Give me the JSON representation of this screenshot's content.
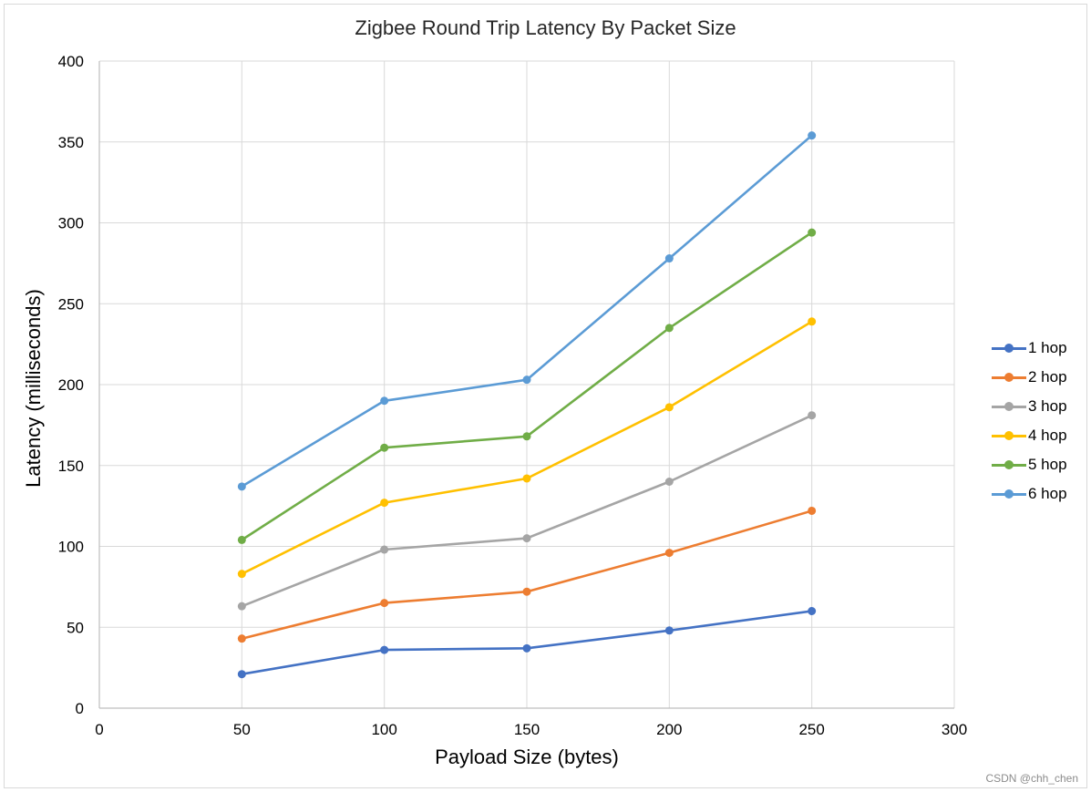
{
  "chart": {
    "title": "Zigbee Round Trip Latency By Packet Size",
    "xlabel": "Payload Size (bytes)",
    "ylabel": "Latency (milliseconds)",
    "x_ticks": [
      "0",
      "50",
      "100",
      "150",
      "200",
      "250",
      "300"
    ],
    "y_ticks": [
      "0",
      "50",
      "100",
      "150",
      "200",
      "250",
      "300",
      "350",
      "400"
    ],
    "watermark": "CSDN @chh_chen"
  },
  "legend": [
    {
      "label": "1 hop",
      "color": "#4472c4"
    },
    {
      "label": "2 hop",
      "color": "#ed7d31"
    },
    {
      "label": "3 hop",
      "color": "#a5a5a5"
    },
    {
      "label": "4 hop",
      "color": "#ffc000"
    },
    {
      "label": "5 hop",
      "color": "#70ad47"
    },
    {
      "label": "6 hop",
      "color": "#5b9bd5"
    }
  ],
  "chart_data": {
    "type": "line",
    "title": "Zigbee Round Trip Latency By Packet Size",
    "xlabel": "Payload Size (bytes)",
    "ylabel": "Latency (milliseconds)",
    "x": [
      50,
      100,
      150,
      200,
      250
    ],
    "xlim": [
      0,
      300
    ],
    "ylim": [
      0,
      400
    ],
    "x_tick_step": 50,
    "y_tick_step": 50,
    "grid": true,
    "legend_position": "right",
    "series": [
      {
        "name": "1 hop",
        "color": "#4472c4",
        "values": [
          21,
          36,
          37,
          48,
          60
        ]
      },
      {
        "name": "2 hop",
        "color": "#ed7d31",
        "values": [
          43,
          65,
          72,
          96,
          122
        ]
      },
      {
        "name": "3 hop",
        "color": "#a5a5a5",
        "values": [
          63,
          98,
          105,
          140,
          181
        ]
      },
      {
        "name": "4 hop",
        "color": "#ffc000",
        "values": [
          83,
          127,
          142,
          186,
          239
        ]
      },
      {
        "name": "5 hop",
        "color": "#70ad47",
        "values": [
          104,
          161,
          168,
          235,
          294
        ]
      },
      {
        "name": "6 hop",
        "color": "#5b9bd5",
        "values": [
          137,
          190,
          203,
          278,
          354
        ]
      }
    ]
  }
}
